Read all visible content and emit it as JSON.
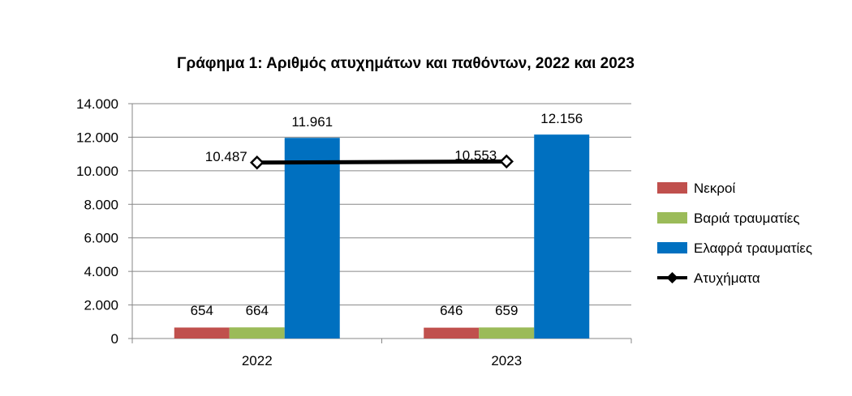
{
  "chart_data": {
    "type": "bar",
    "title": "Γράφημα 1: Αριθμός ατυχημάτων και παθόντων, 2022 και 2023",
    "categories": [
      "2022",
      "2023"
    ],
    "ylim": [
      0,
      14000
    ],
    "yticks": [
      0,
      2000,
      4000,
      6000,
      8000,
      10000,
      12000,
      14000
    ],
    "ytick_labels": [
      "0",
      "2.000",
      "4.000",
      "6.000",
      "8.000",
      "10.000",
      "12.000",
      "14.000"
    ],
    "grid": true,
    "legend_position": "right",
    "series": [
      {
        "name": "Νεκροί",
        "kind": "bar",
        "color": "#C0504D",
        "values": [
          654,
          646
        ],
        "labels": [
          "654",
          "646"
        ]
      },
      {
        "name": "Βαριά τραυματίες",
        "kind": "bar",
        "color": "#9BBB59",
        "values": [
          664,
          659
        ],
        "labels": [
          "664",
          "659"
        ]
      },
      {
        "name": "Ελαφρά τραυματίες",
        "kind": "bar",
        "color": "#0070C0",
        "values": [
          11961,
          12156
        ],
        "labels": [
          "11.961",
          "12.156"
        ]
      },
      {
        "name": "Ατυχήματα",
        "kind": "line",
        "color": "#000000",
        "marker": "diamond",
        "values": [
          10487,
          10553
        ],
        "labels": [
          "10.487",
          "10.553"
        ]
      }
    ]
  }
}
